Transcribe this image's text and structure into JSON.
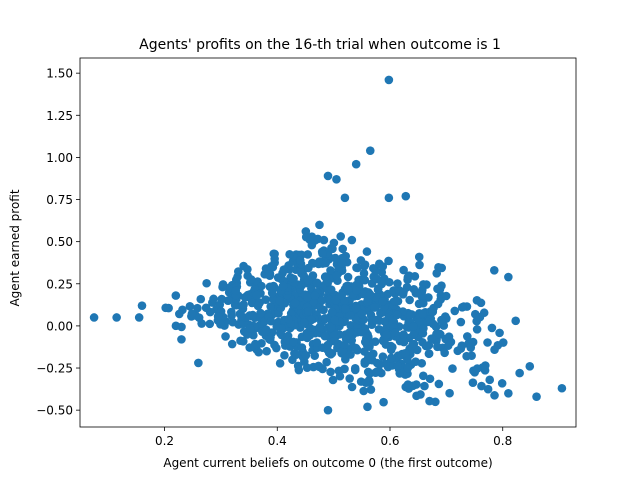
{
  "chart_data": {
    "type": "scatter",
    "title": "Agents' profits on the 16-th trial when outcome is 1",
    "xlabel": "Agent current beliefs on outcome 0 (the first outcome)",
    "ylabel": "Agent earned profit",
    "xlim": [
      0.05,
      0.93
    ],
    "ylim": [
      -0.6,
      1.59
    ],
    "xticks": [
      0.2,
      0.4,
      0.6,
      0.8
    ],
    "xtick_labels": [
      "0.2",
      "0.4",
      "0.6",
      "0.8"
    ],
    "yticks": [
      -0.5,
      -0.25,
      0.0,
      0.25,
      0.5,
      0.75,
      1.0,
      1.25,
      1.5
    ],
    "ytick_labels": [
      "−0.50",
      "−0.25",
      "0.00",
      "0.25",
      "0.50",
      "0.75",
      "1.00",
      "1.25",
      "1.50"
    ],
    "grid": false,
    "legend": "none",
    "point_color": "#1f77b4",
    "outliers": [
      [
        0.075,
        0.05
      ],
      [
        0.115,
        0.05
      ],
      [
        0.26,
        -0.22
      ],
      [
        0.598,
        1.46
      ],
      [
        0.565,
        1.04
      ],
      [
        0.54,
        0.96
      ],
      [
        0.49,
        0.89
      ],
      [
        0.505,
        0.87
      ],
      [
        0.52,
        0.76
      ],
      [
        0.598,
        0.76
      ],
      [
        0.628,
        0.77
      ],
      [
        0.905,
        -0.37
      ],
      [
        0.86,
        -0.42
      ],
      [
        0.81,
        0.29
      ],
      [
        0.785,
        0.33
      ],
      [
        0.823,
        0.03
      ],
      [
        0.56,
        -0.48
      ],
      [
        0.49,
        -0.5
      ],
      [
        0.848,
        -0.24
      ],
      [
        0.81,
        -0.4
      ],
      [
        0.83,
        -0.28
      ],
      [
        0.155,
        0.05
      ],
      [
        0.16,
        0.12
      ],
      [
        0.23,
        -0.08
      ],
      [
        0.22,
        0.18
      ]
    ],
    "cluster": {
      "count": 900,
      "x_range": [
        0.15,
        0.86
      ],
      "y_upper_edge": [
        [
          0.15,
          0.12
        ],
        [
          0.3,
          0.32
        ],
        [
          0.45,
          0.65
        ],
        [
          0.55,
          0.5
        ],
        [
          0.7,
          0.38
        ],
        [
          0.86,
          0.05
        ]
      ],
      "y_lower_edge": [
        [
          0.15,
          0.0
        ],
        [
          0.3,
          -0.15
        ],
        [
          0.45,
          -0.32
        ],
        [
          0.55,
          -0.48
        ],
        [
          0.7,
          -0.48
        ],
        [
          0.86,
          -0.45
        ]
      ]
    }
  }
}
